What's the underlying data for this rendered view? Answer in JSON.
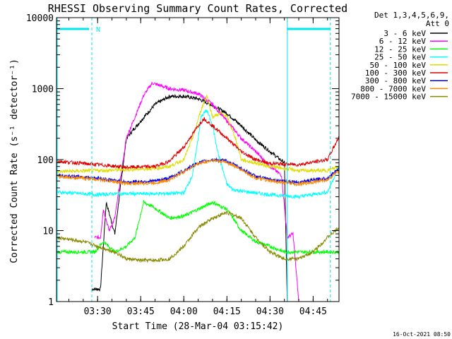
{
  "chart_data": {
    "type": "line",
    "title": "RHESSI Observing Summary Count Rates, Corrected",
    "xlabel": "Start Time (28-Mar-04 03:15:42)",
    "ylabel": "Corrected Count Rate (s⁻¹ detector⁻¹)",
    "y_scale": "log",
    "ylim": [
      1,
      10000
    ],
    "xlim": [
      "03:15:42",
      "04:54:00"
    ],
    "x_ticks": [
      "03:30",
      "03:45",
      "04:00",
      "04:15",
      "04:30",
      "04:45"
    ],
    "y_ticks": [
      "1",
      "10",
      "100",
      "1000",
      "10000"
    ],
    "legend_header": [
      "Det 1,3,4,5,6,9,",
      "Att 0"
    ],
    "legend_placement": "right",
    "timestamp": "16-Oct-2021 08:50",
    "flag_label": "N",
    "colors": {
      "axes": "#000000",
      "flag": "#00e5ee"
    },
    "series": [
      {
        "name": "3 - 6 keV",
        "color": "#000000",
        "x": [
          "03:28:00",
          "03:31:00",
          "03:33:00",
          "03:36:00",
          "03:40:00",
          "03:45:00",
          "03:50:00",
          "03:55:00",
          "04:00:00",
          "04:05:00",
          "04:10:00",
          "04:15:00",
          "04:20:00",
          "04:25:00",
          "04:30:00",
          "04:35:00",
          "04:36:00"
        ],
        "values": [
          1.5,
          1.5,
          25,
          9,
          200,
          350,
          600,
          780,
          780,
          720,
          580,
          450,
          300,
          190,
          130,
          90,
          1
        ]
      },
      {
        "name": "6 - 12 keV",
        "color": "#ff00ff",
        "x": [
          "03:29:00",
          "03:31:00",
          "03:32:00",
          "03:34:00",
          "03:36:00",
          "03:40:00",
          "03:43:00",
          "03:46:00",
          "03:49:00",
          "03:55:00",
          "04:00:00",
          "04:05:00",
          "04:10:00",
          "04:15:00",
          "04:20:00",
          "04:25:00",
          "04:30:00",
          "04:34:00",
          "04:36:00",
          "04:38:00",
          "04:40:00"
        ],
        "values": [
          8,
          8,
          20,
          10,
          15,
          200,
          400,
          800,
          1200,
          1000,
          950,
          850,
          600,
          350,
          200,
          130,
          80,
          60,
          8,
          9,
          1
        ]
      },
      {
        "name": "12 - 25 keV",
        "color": "#00ff00",
        "x": [
          "03:15:42",
          "03:29:00",
          "03:32:00",
          "03:36:00",
          "03:40:00",
          "03:43:00",
          "03:46:00",
          "03:49:00",
          "03:55:00",
          "04:00:00",
          "04:05:00",
          "04:10:00",
          "04:15:00",
          "04:20:00",
          "04:25:00",
          "04:30:00",
          "04:35:00",
          "04:54:00"
        ],
        "values": [
          5,
          5,
          7,
          5,
          6,
          8,
          25,
          22,
          15,
          16,
          20,
          25,
          20,
          10,
          7,
          6,
          5,
          5
        ]
      },
      {
        "name": "25 - 50 keV",
        "color": "#00ffff",
        "x": [
          "03:15:42",
          "03:25:00",
          "03:30:00",
          "03:35:00",
          "03:40:00",
          "03:50:00",
          "04:00:00",
          "04:03:00",
          "04:05:00",
          "04:06:00",
          "04:08:00",
          "04:10:00",
          "04:12:00",
          "04:15:00",
          "04:17:00",
          "04:20:00",
          "04:30:00",
          "04:40:00",
          "04:50:00",
          "04:54:00"
        ],
        "values": [
          35,
          33,
          32,
          33,
          33,
          33,
          34,
          60,
          200,
          400,
          500,
          300,
          120,
          45,
          38,
          36,
          32,
          30,
          35,
          80
        ]
      },
      {
        "name": "50 - 100 keV",
        "color": "#dddd00",
        "x": [
          "03:15:42",
          "03:30:00",
          "03:40:00",
          "03:50:00",
          "03:55:00",
          "04:00:00",
          "04:03:00",
          "04:06:00",
          "04:08:00",
          "04:10:00",
          "04:13:00",
          "04:15:00",
          "04:18:00",
          "04:20:00",
          "04:30:00",
          "04:40:00",
          "04:50:00",
          "04:54:00"
        ],
        "values": [
          68,
          70,
          72,
          75,
          80,
          100,
          200,
          500,
          800,
          400,
          450,
          400,
          200,
          100,
          80,
          70,
          70,
          80
        ]
      },
      {
        "name": "100 - 300 keV",
        "color": "#dd0000",
        "x": [
          "03:15:42",
          "03:30:00",
          "03:40:00",
          "03:50:00",
          "03:55:00",
          "04:00:00",
          "04:05:00",
          "04:07:00",
          "04:10:00",
          "04:15:00",
          "04:20:00",
          "04:25:00",
          "04:30:00",
          "04:40:00",
          "04:50:00",
          "04:54:00"
        ],
        "values": [
          95,
          85,
          78,
          80,
          95,
          150,
          300,
          380,
          300,
          200,
          130,
          100,
          88,
          85,
          100,
          210
        ]
      },
      {
        "name": "300 - 800 keV",
        "color": "#0000ee",
        "x": [
          "03:15:42",
          "03:30:00",
          "03:40:00",
          "03:50:00",
          "03:55:00",
          "04:00:00",
          "04:05:00",
          "04:10:00",
          "04:15:00",
          "04:20:00",
          "04:25:00",
          "04:30:00",
          "04:40:00",
          "04:50:00",
          "04:54:00"
        ],
        "values": [
          60,
          55,
          48,
          50,
          55,
          70,
          90,
          100,
          95,
          75,
          58,
          52,
          48,
          55,
          75
        ]
      },
      {
        "name": "800 - 7000 keV",
        "color": "#ff8800",
        "x": [
          "03:15:42",
          "03:30:00",
          "03:40:00",
          "03:50:00",
          "03:55:00",
          "04:00:00",
          "04:05:00",
          "04:10:00",
          "04:15:00",
          "04:20:00",
          "04:25:00",
          "04:30:00",
          "04:40:00",
          "04:50:00",
          "04:54:00"
        ],
        "values": [
          58,
          53,
          46,
          47,
          52,
          68,
          88,
          98,
          92,
          72,
          55,
          50,
          45,
          52,
          70
        ]
      },
      {
        "name": "7000 - 15000 keV",
        "color": "#888800",
        "x": [
          "03:15:42",
          "03:25:00",
          "03:30:00",
          "03:36:00",
          "03:40:00",
          "03:45:00",
          "03:50:00",
          "03:55:00",
          "04:00:00",
          "04:05:00",
          "04:10:00",
          "04:15:00",
          "04:20:00",
          "04:25:00",
          "04:30:00",
          "04:35:00",
          "04:40:00",
          "04:45:00",
          "04:50:00",
          "04:54:00"
        ],
        "values": [
          8,
          7,
          6,
          5,
          4,
          3.8,
          3.8,
          4,
          6,
          11,
          15,
          18,
          15,
          8,
          5,
          4,
          4,
          5,
          8,
          11
        ]
      }
    ]
  }
}
